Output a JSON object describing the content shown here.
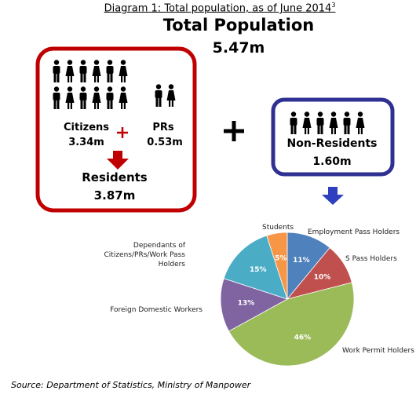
{
  "caption": "Diagram 1: Total population, as of June 2014",
  "caption_superscript": "3",
  "total": {
    "title": "Total Population",
    "value": "5.47m"
  },
  "residents_box": {
    "citizens": {
      "label": "Citizens",
      "value": "3.34m"
    },
    "prs": {
      "label": "PRs",
      "value": "0.53m"
    },
    "residents": {
      "label": "Residents",
      "value": "3.87m"
    }
  },
  "non_residents": {
    "label": "Non-Residents",
    "value": "1.60m"
  },
  "chart_data": {
    "type": "pie",
    "categories": [
      "Employment Pass Holders",
      "S Pass Holders",
      "Work Permit Holders",
      "Foreign Domestic Workers",
      "Dependants of Citizens/PRs/Work Pass Holders",
      "Students"
    ],
    "values": [
      11,
      10,
      46,
      13,
      15,
      5
    ],
    "value_labels": [
      "11%",
      "10%",
      "46%",
      "13%",
      "15%",
      "5%"
    ],
    "colors": [
      "#4f81bd",
      "#c0504d",
      "#9bbb59",
      "#8064a2",
      "#4bacc6",
      "#f79646"
    ]
  },
  "source": "Source: Department of Statistics, Ministry of Manpower"
}
